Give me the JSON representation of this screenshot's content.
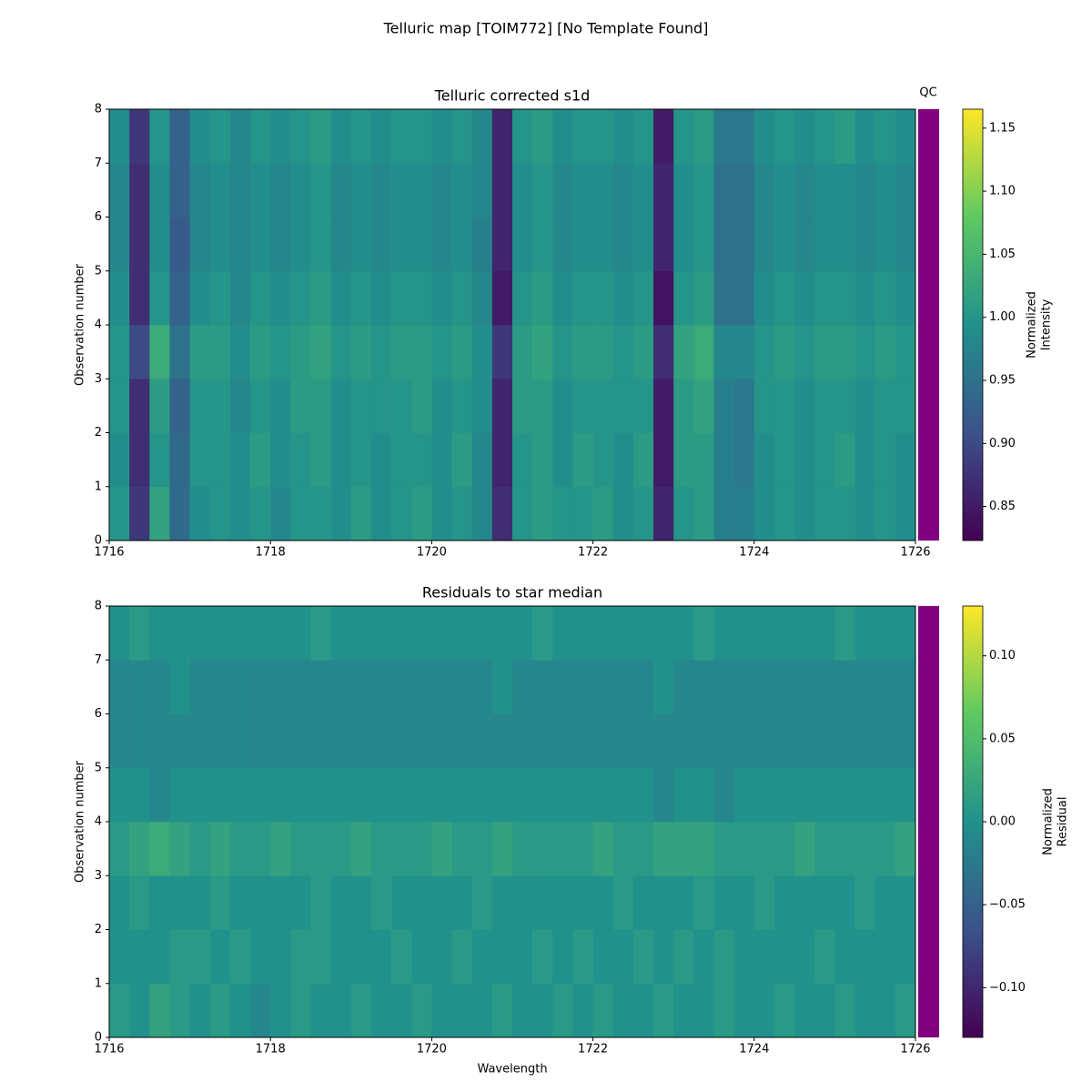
{
  "title": "Telluric map [TOIM772] [No Template Found]",
  "qc_label": "QC",
  "qc_color": "#800080",
  "chart_data": [
    {
      "type": "heatmap",
      "title": "Telluric corrected s1d",
      "ylabel": "Observation number",
      "colormap": "viridis",
      "colorbar_label": [
        "Normalized",
        "Intensity"
      ],
      "clim": [
        0.823,
        1.165
      ],
      "cticks": [
        0.85,
        {
          "value": 0.9,
          "label": "0.90"
        },
        0.95,
        {
          "value": 1.0,
          "label": "1.00"
        },
        1.05,
        {
          "value": 1.1,
          "label": "1.10"
        },
        1.15
      ],
      "xlim": [
        1716,
        1726
      ],
      "xticks": [
        1716,
        1718,
        1720,
        1722,
        1724,
        1726
      ],
      "ylim": [
        0,
        8
      ],
      "yticks": [
        0,
        1,
        2,
        3,
        4,
        5,
        6,
        7,
        8
      ],
      "x_bins": [
        1716,
        1716.25,
        1716.5,
        1716.75,
        1717,
        1717.25,
        1717.5,
        1717.75,
        1718,
        1718.25,
        1718.5,
        1718.75,
        1719,
        1719.25,
        1719.5,
        1719.75,
        1720,
        1720.25,
        1720.5,
        1720.75,
        1721,
        1721.25,
        1721.5,
        1721.75,
        1722,
        1722.25,
        1722.5,
        1722.75,
        1723,
        1723.25,
        1723.5,
        1723.75,
        1724,
        1724.25,
        1724.5,
        1724.75,
        1725,
        1725.25,
        1725.5,
        1725.75,
        1726
      ],
      "y_bins": [
        0,
        1,
        2,
        3,
        4,
        5,
        6,
        7,
        8
      ],
      "z": [
        [
          1.0,
          0.88,
          1.02,
          0.94,
          0.99,
          1.0,
          0.99,
          1.0,
          0.98,
          1.0,
          1.0,
          0.99,
          1.01,
          0.99,
          1.0,
          1.01,
          0.99,
          1.0,
          0.98,
          0.87,
          1.0,
          1.01,
          1.0,
          1.0,
          1.01,
          0.99,
          1.0,
          0.86,
          1.0,
          1.01,
          0.97,
          0.97,
          0.99,
          1.0,
          0.99,
          1.0,
          1.0,
          0.99,
          1.0,
          0.99
        ],
        [
          0.99,
          0.87,
          1.0,
          0.94,
          1.0,
          1.0,
          0.99,
          1.01,
          0.99,
          1.0,
          1.01,
          0.99,
          1.0,
          0.99,
          1.0,
          1.0,
          0.99,
          1.01,
          0.98,
          0.86,
          1.0,
          1.01,
          0.99,
          1.01,
          1.0,
          0.99,
          1.01,
          0.85,
          1.01,
          1.01,
          0.97,
          0.96,
          0.99,
          1.0,
          0.99,
          1.0,
          1.01,
          0.99,
          1.0,
          0.99
        ],
        [
          1.0,
          0.87,
          1.01,
          0.93,
          1.0,
          1.0,
          0.98,
          1.0,
          0.99,
          1.01,
          1.01,
          0.99,
          1.0,
          1.0,
          1.0,
          1.01,
          0.99,
          1.0,
          0.99,
          0.86,
          1.01,
          1.01,
          0.99,
          1.0,
          1.0,
          1.0,
          1.0,
          0.85,
          1.01,
          1.02,
          0.97,
          0.96,
          1.0,
          1.0,
          0.99,
          1.0,
          1.0,
          0.99,
          1.0,
          1.0
        ],
        [
          1.0,
          0.9,
          1.03,
          0.95,
          1.01,
          1.01,
          0.99,
          1.01,
          1.0,
          1.01,
          1.02,
          1.0,
          1.01,
          1.0,
          1.01,
          1.01,
          1.0,
          1.01,
          0.99,
          0.88,
          1.01,
          1.02,
          1.0,
          1.01,
          1.01,
          1.0,
          1.01,
          0.87,
          1.02,
          1.03,
          0.98,
          0.98,
          1.0,
          1.01,
          1.0,
          1.01,
          1.01,
          1.0,
          1.01,
          1.0
        ],
        [
          0.99,
          0.87,
          1.0,
          0.93,
          0.99,
          1.0,
          0.98,
          1.0,
          0.99,
          1.0,
          1.01,
          0.99,
          1.0,
          0.99,
          1.0,
          1.0,
          0.99,
          1.0,
          0.98,
          0.85,
          1.0,
          1.01,
          0.99,
          1.0,
          1.0,
          0.99,
          1.0,
          0.84,
          1.0,
          1.01,
          0.95,
          0.95,
          0.99,
          1.0,
          0.99,
          1.0,
          1.0,
          0.99,
          1.0,
          0.99
        ],
        [
          0.98,
          0.87,
          0.99,
          0.92,
          0.98,
          0.99,
          0.98,
          0.99,
          0.98,
          0.99,
          1.0,
          0.98,
          0.99,
          0.98,
          0.99,
          0.99,
          0.98,
          0.99,
          0.97,
          0.86,
          0.99,
          1.0,
          0.98,
          0.99,
          0.99,
          0.98,
          0.99,
          0.86,
          0.99,
          1.0,
          0.95,
          0.95,
          0.98,
          0.99,
          0.98,
          0.99,
          0.99,
          0.98,
          0.99,
          0.98
        ],
        [
          0.98,
          0.87,
          0.99,
          0.93,
          0.98,
          0.99,
          0.98,
          0.99,
          0.98,
          0.99,
          1.0,
          0.98,
          0.99,
          0.98,
          0.99,
          0.99,
          0.98,
          0.99,
          0.98,
          0.86,
          0.99,
          1.0,
          0.98,
          0.99,
          0.99,
          0.98,
          0.99,
          0.86,
          0.99,
          1.0,
          0.95,
          0.95,
          0.98,
          0.99,
          0.98,
          0.99,
          0.99,
          0.98,
          0.99,
          0.98
        ],
        [
          0.99,
          0.88,
          1.0,
          0.93,
          0.99,
          1.0,
          0.98,
          1.0,
          0.99,
          1.0,
          1.01,
          0.99,
          1.0,
          0.99,
          1.0,
          1.0,
          0.99,
          1.0,
          0.98,
          0.86,
          1.0,
          1.01,
          0.99,
          1.0,
          1.0,
          0.99,
          1.0,
          0.85,
          1.0,
          1.01,
          0.96,
          0.96,
          0.99,
          1.0,
          0.99,
          1.0,
          1.01,
          0.99,
          1.0,
          0.99
        ]
      ]
    },
    {
      "type": "heatmap",
      "title": "Residuals to star median",
      "xlabel": "Wavelength",
      "ylabel": "Observation number",
      "colormap": "viridis",
      "colorbar_label": [
        "Normalized",
        "Residual"
      ],
      "clim": [
        -0.13,
        0.13
      ],
      "cticks": [
        {
          "value": -0.1,
          "label": "−0.10"
        },
        {
          "value": -0.05,
          "label": "−0.05"
        },
        {
          "value": 0,
          "label": "0.00"
        },
        0.05,
        {
          "value": 0.1,
          "label": "0.10"
        }
      ],
      "xlim": [
        1716,
        1726
      ],
      "xticks": [
        1716,
        1718,
        1720,
        1722,
        1724,
        1726
      ],
      "ylim": [
        0,
        8
      ],
      "yticks": [
        0,
        1,
        2,
        3,
        4,
        5,
        6,
        7,
        8
      ],
      "x_bins": [
        1716,
        1716.25,
        1716.5,
        1716.75,
        1717,
        1717.25,
        1717.5,
        1717.75,
        1718,
        1718.25,
        1718.5,
        1718.75,
        1719,
        1719.25,
        1719.5,
        1719.75,
        1720,
        1720.25,
        1720.5,
        1720.75,
        1721,
        1721.25,
        1721.5,
        1721.75,
        1722,
        1722.25,
        1722.5,
        1722.75,
        1723,
        1723.25,
        1723.5,
        1723.75,
        1724,
        1724.25,
        1724.5,
        1724.75,
        1725,
        1725.25,
        1725.5,
        1725.75,
        1726
      ],
      "y_bins": [
        0,
        1,
        2,
        3,
        4,
        5,
        6,
        7,
        8
      ],
      "z": [
        [
          0.01,
          0.0,
          0.02,
          0.01,
          0.0,
          0.01,
          0.0,
          -0.01,
          0.0,
          0.01,
          0.0,
          0.0,
          0.01,
          0.0,
          0.0,
          0.01,
          0.0,
          0.0,
          0.0,
          0.01,
          0.0,
          0.0,
          0.01,
          0.0,
          0.01,
          0.0,
          0.0,
          0.01,
          0.0,
          0.0,
          0.01,
          0.0,
          0.0,
          0.01,
          0.0,
          0.0,
          0.01,
          0.0,
          0.0,
          0.01
        ],
        [
          0.0,
          0.0,
          0.0,
          0.01,
          0.01,
          0.0,
          0.01,
          0.0,
          0.0,
          0.01,
          0.01,
          0.0,
          0.0,
          0.0,
          0.01,
          0.0,
          0.0,
          0.01,
          0.0,
          0.0,
          0.0,
          0.01,
          0.0,
          0.01,
          0.0,
          0.0,
          0.01,
          0.0,
          0.01,
          0.0,
          0.01,
          0.0,
          0.0,
          0.0,
          0.0,
          0.01,
          0.0,
          0.0,
          0.0,
          0.0
        ],
        [
          0.0,
          0.01,
          0.0,
          0.0,
          0.0,
          0.01,
          0.0,
          0.0,
          0.0,
          0.0,
          0.01,
          0.0,
          0.0,
          0.01,
          0.0,
          0.0,
          0.0,
          0.0,
          0.01,
          0.0,
          0.0,
          0.0,
          0.0,
          0.0,
          0.0,
          0.01,
          0.0,
          0.0,
          0.0,
          0.01,
          0.0,
          0.0,
          0.01,
          0.0,
          0.0,
          0.0,
          0.0,
          0.01,
          0.0,
          0.0
        ],
        [
          0.01,
          0.02,
          0.03,
          0.02,
          0.01,
          0.02,
          0.01,
          0.01,
          0.02,
          0.01,
          0.01,
          0.01,
          0.02,
          0.01,
          0.01,
          0.01,
          0.02,
          0.01,
          0.01,
          0.02,
          0.01,
          0.01,
          0.01,
          0.01,
          0.02,
          0.01,
          0.01,
          0.02,
          0.02,
          0.02,
          0.01,
          0.01,
          0.01,
          0.01,
          0.02,
          0.01,
          0.01,
          0.01,
          0.01,
          0.02
        ],
        [
          0.0,
          0.0,
          -0.01,
          0.0,
          0.0,
          0.0,
          0.0,
          0.0,
          0.0,
          0.0,
          0.0,
          0.0,
          0.0,
          0.0,
          0.0,
          0.0,
          0.0,
          0.0,
          0.0,
          0.0,
          0.0,
          0.0,
          0.0,
          0.0,
          0.0,
          0.0,
          0.0,
          -0.01,
          0.0,
          0.0,
          -0.01,
          0.0,
          0.0,
          0.0,
          0.0,
          0.0,
          0.0,
          0.0,
          0.0,
          0.0
        ],
        [
          -0.01,
          -0.01,
          -0.01,
          -0.01,
          -0.01,
          -0.01,
          -0.01,
          -0.01,
          -0.01,
          -0.01,
          -0.01,
          -0.01,
          -0.01,
          -0.01,
          -0.01,
          -0.01,
          -0.01,
          -0.01,
          -0.01,
          -0.01,
          -0.01,
          -0.01,
          -0.01,
          -0.01,
          -0.01,
          -0.01,
          -0.01,
          -0.01,
          -0.01,
          -0.01,
          -0.01,
          -0.01,
          -0.01,
          -0.01,
          -0.01,
          -0.01,
          -0.01,
          -0.01,
          -0.01,
          -0.01
        ],
        [
          -0.01,
          -0.01,
          -0.01,
          0.0,
          -0.01,
          -0.01,
          -0.01,
          -0.01,
          -0.01,
          -0.01,
          -0.01,
          -0.01,
          -0.01,
          -0.01,
          -0.01,
          -0.01,
          -0.01,
          -0.01,
          -0.01,
          0.0,
          -0.01,
          -0.01,
          -0.01,
          -0.01,
          -0.01,
          -0.01,
          -0.01,
          0.0,
          -0.01,
          -0.01,
          -0.01,
          -0.01,
          -0.01,
          -0.01,
          -0.01,
          -0.01,
          -0.01,
          -0.01,
          -0.01,
          -0.01
        ],
        [
          0.0,
          0.01,
          0.0,
          0.0,
          0.0,
          0.0,
          0.0,
          0.0,
          0.0,
          0.0,
          0.01,
          0.0,
          0.0,
          0.0,
          0.0,
          0.0,
          0.0,
          0.0,
          0.0,
          0.0,
          0.0,
          0.01,
          0.0,
          0.0,
          0.0,
          0.0,
          0.0,
          0.0,
          0.0,
          0.01,
          0.0,
          0.0,
          0.0,
          0.0,
          0.0,
          0.0,
          0.01,
          0.0,
          0.0,
          0.0
        ]
      ]
    }
  ]
}
